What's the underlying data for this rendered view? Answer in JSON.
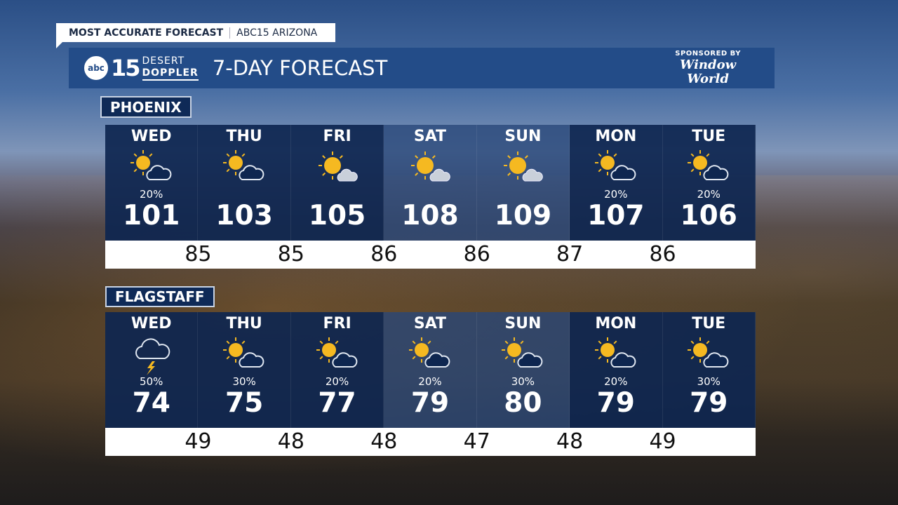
{
  "banner": {
    "left": "MOST ACCURATE FORECAST",
    "right": "ABC15 ARIZONA"
  },
  "header": {
    "logo_abc": "abc",
    "logo_num": "15",
    "logo_line1": "DESERT",
    "logo_line2": "DOPPLER",
    "title": "7-DAY FORECAST",
    "sponsor_label": "SPONSORED BY",
    "sponsor_name_1": "Window",
    "sponsor_name_2": "World"
  },
  "cities": [
    {
      "name": "PHOENIX",
      "days": [
        {
          "day": "WED",
          "icon": "partly-cloudy",
          "pop": "20%",
          "high": "101"
        },
        {
          "day": "THU",
          "icon": "partly-cloudy",
          "pop": "",
          "high": "103"
        },
        {
          "day": "FRI",
          "icon": "mostly-sunny",
          "pop": "",
          "high": "105"
        },
        {
          "day": "SAT",
          "icon": "mostly-sunny",
          "pop": "",
          "high": "108"
        },
        {
          "day": "SUN",
          "icon": "mostly-sunny",
          "pop": "",
          "high": "109"
        },
        {
          "day": "MON",
          "icon": "partly-cloudy",
          "pop": "20%",
          "high": "107"
        },
        {
          "day": "TUE",
          "icon": "partly-cloudy",
          "pop": "20%",
          "high": "106"
        }
      ],
      "lows": [
        "85",
        "85",
        "86",
        "86",
        "87",
        "86"
      ]
    },
    {
      "name": "FLAGSTAFF",
      "days": [
        {
          "day": "WED",
          "icon": "thunderstorm",
          "pop": "50%",
          "high": "74"
        },
        {
          "day": "THU",
          "icon": "partly-cloudy",
          "pop": "30%",
          "high": "75"
        },
        {
          "day": "FRI",
          "icon": "partly-cloudy",
          "pop": "20%",
          "high": "77"
        },
        {
          "day": "SAT",
          "icon": "partly-cloudy",
          "pop": "20%",
          "high": "79"
        },
        {
          "day": "SUN",
          "icon": "partly-cloudy",
          "pop": "30%",
          "high": "80"
        },
        {
          "day": "MON",
          "icon": "partly-cloudy",
          "pop": "20%",
          "high": "79"
        },
        {
          "day": "TUE",
          "icon": "partly-cloudy",
          "pop": "30%",
          "high": "79"
        }
      ],
      "lows": [
        "49",
        "48",
        "48",
        "47",
        "48",
        "49"
      ]
    }
  ],
  "colors": {
    "header": "#234c88",
    "panel": "#0e2650",
    "sun": "#f5b921"
  }
}
